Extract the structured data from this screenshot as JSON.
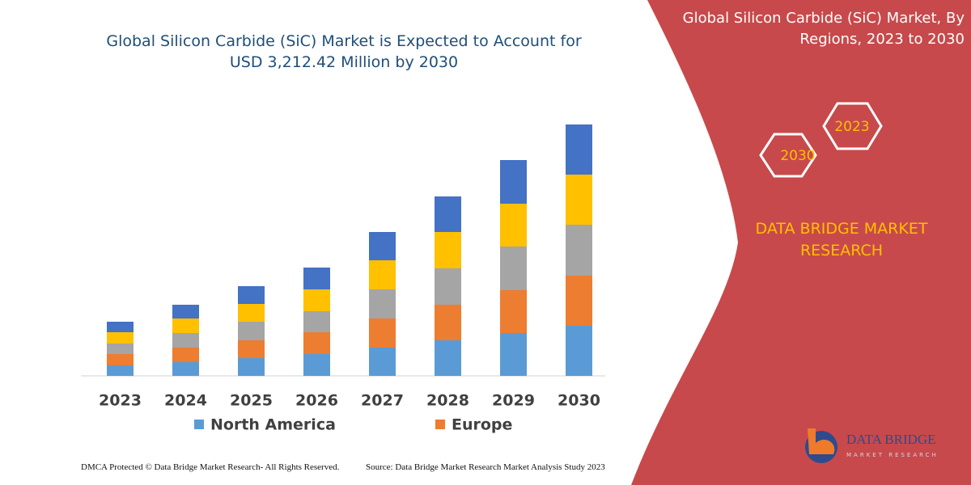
{
  "chart_data": {
    "type": "stacked_bar",
    "title": "Global Silicon Carbide (SiC) Market is Expected to Account for USD 3,212.42 Million by 2030",
    "categories": [
      "2023",
      "2024",
      "2025",
      "2026",
      "2027",
      "2028",
      "2029",
      "2030"
    ],
    "series": [
      {
        "name": "North America",
        "color": "#5b9bd5",
        "values": [
          13,
          17,
          22,
          27,
          35,
          44,
          53,
          62
        ]
      },
      {
        "name": "Europe",
        "color": "#ed7d31",
        "values": [
          14,
          18,
          22,
          27,
          36,
          44,
          53,
          62
        ]
      },
      {
        "color": "#a5a5a5",
        "values": [
          13,
          18,
          23,
          26,
          36,
          45,
          54,
          63
        ]
      },
      {
        "color": "#ffc000",
        "values": [
          14,
          18,
          22,
          27,
          36,
          45,
          53,
          62
        ]
      },
      {
        "color": "#4472c4",
        "values": [
          13,
          17,
          22,
          27,
          35,
          44,
          54,
          62
        ]
      }
    ],
    "ylim": [
      0,
      320
    ]
  },
  "panel": {
    "title": "Global Silicon Carbide (SiC) Market, By Regions, 2023 to 2030",
    "hex_labels": [
      "2023",
      "2030"
    ],
    "brand": "DATA BRIDGE MARKET RESEARCH",
    "logo": "DATA BRIDGE",
    "logo_sub": "MARKET RESEARCH"
  },
  "footer": {
    "left": "DMCA Protected © Data Bridge Market Research- All Rights Reserved.",
    "right": "Source: Data Bridge Market Research Market Analysis Study 2023"
  }
}
